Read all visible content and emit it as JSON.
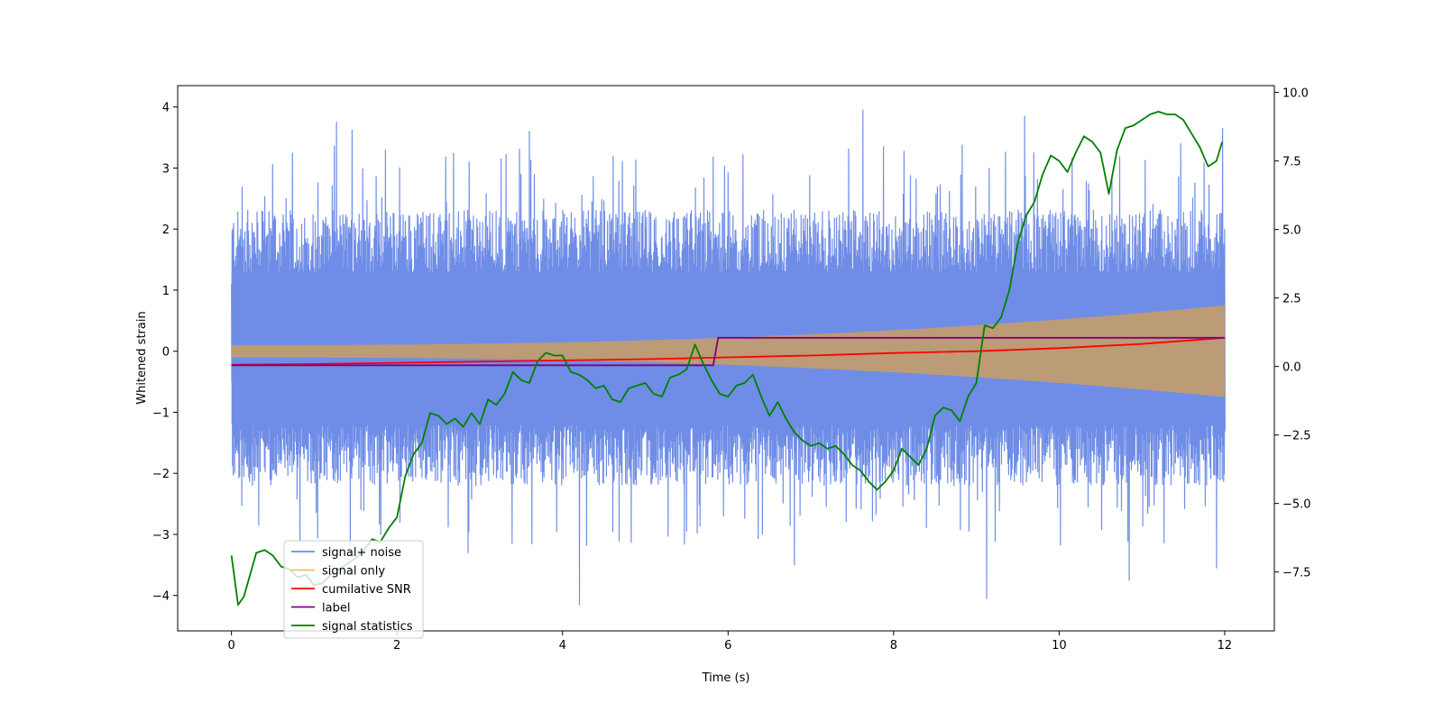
{
  "chart_data": {
    "type": "line",
    "title": "",
    "xlabel": "Time (s)",
    "ylabel": "Whitened strain",
    "y2label": "",
    "xlim": [
      -0.65,
      12.6
    ],
    "ylim": [
      -4.58,
      4.35
    ],
    "y2lim": [
      -9.65,
      10.25
    ],
    "xticks": [
      0,
      2,
      4,
      6,
      8,
      10,
      12
    ],
    "xtick_labels": [
      "0",
      "2",
      "4",
      "6",
      "8",
      "10",
      "12"
    ],
    "yticks": [
      -4,
      -3,
      -2,
      -1,
      0,
      1,
      2,
      3,
      4
    ],
    "ytick_labels": [
      "−4",
      "−3",
      "−2",
      "−1",
      "0",
      "1",
      "2",
      "3",
      "4"
    ],
    "y2ticks": [
      -7.5,
      -5.0,
      -2.5,
      0.0,
      2.5,
      5.0,
      7.5,
      10.0
    ],
    "y2tick_labels": [
      "−7.5",
      "−5.0",
      "−2.5",
      "0.0",
      "2.5",
      "5.0",
      "7.5",
      "10.0"
    ],
    "legend_position": "lower-left",
    "grid": false,
    "series": [
      {
        "name": "signal+ noise",
        "axis": "left",
        "color": "#6f8de6",
        "kind": "noise-band",
        "upper_envelope_approx": 2.1,
        "lower_envelope_approx": -2.0,
        "peak_max": 3.95,
        "peak_min": -4.15
      },
      {
        "name": "signal only",
        "axis": "left",
        "color": "#f0c060",
        "kind": "chirp",
        "amplitude_start": 0.1,
        "amplitude_end": 0.75
      },
      {
        "name": "cumilative SNR",
        "axis": "left",
        "color": "#ff0000",
        "x": [
          0,
          1,
          2,
          3,
          4,
          5,
          6,
          7,
          8,
          9,
          10,
          11,
          12
        ],
        "values": [
          -0.22,
          -0.21,
          -0.19,
          -0.17,
          -0.15,
          -0.13,
          -0.1,
          -0.07,
          -0.03,
          0.0,
          0.05,
          0.12,
          0.22
        ]
      },
      {
        "name": "label",
        "axis": "left",
        "color": "#800080",
        "x": [
          0,
          5.82,
          5.88,
          12
        ],
        "values": [
          -0.23,
          -0.23,
          0.22,
          0.22
        ]
      },
      {
        "name": "signal statistics",
        "axis": "right",
        "color": "#008000",
        "x": [
          0,
          0.08,
          0.15,
          0.3,
          0.4,
          0.5,
          0.6,
          0.7,
          0.8,
          0.9,
          1.0,
          1.1,
          1.2,
          1.3,
          1.4,
          1.5,
          1.6,
          1.7,
          1.8,
          1.9,
          2.0,
          2.1,
          2.2,
          2.3,
          2.4,
          2.5,
          2.6,
          2.7,
          2.8,
          2.9,
          3.0,
          3.1,
          3.2,
          3.3,
          3.4,
          3.5,
          3.6,
          3.7,
          3.8,
          3.9,
          4.0,
          4.1,
          4.2,
          4.3,
          4.4,
          4.5,
          4.6,
          4.7,
          4.8,
          4.9,
          5.0,
          5.1,
          5.2,
          5.3,
          5.4,
          5.5,
          5.6,
          5.7,
          5.8,
          5.9,
          6.0,
          6.1,
          6.2,
          6.3,
          6.4,
          6.5,
          6.6,
          6.7,
          6.8,
          6.9,
          7.0,
          7.1,
          7.2,
          7.3,
          7.4,
          7.5,
          7.6,
          7.7,
          7.8,
          7.9,
          8.0,
          8.1,
          8.2,
          8.3,
          8.4,
          8.5,
          8.6,
          8.7,
          8.8,
          8.9,
          9.0,
          9.1,
          9.2,
          9.3,
          9.4,
          9.5,
          9.6,
          9.7,
          9.8,
          9.9,
          10.0,
          10.1,
          10.2,
          10.3,
          10.4,
          10.5,
          10.6,
          10.7,
          10.8,
          10.9,
          11.0,
          11.1,
          11.2,
          11.3,
          11.4,
          11.5,
          11.6,
          11.7,
          11.8,
          11.9,
          11.97
        ],
        "values": [
          -6.9,
          -8.7,
          -8.4,
          -6.8,
          -6.7,
          -6.9,
          -7.3,
          -7.4,
          -7.7,
          -7.6,
          -8.0,
          -7.9,
          -7.6,
          -7.4,
          -7.2,
          -7.0,
          -6.7,
          -6.3,
          -6.4,
          -5.9,
          -5.5,
          -4.0,
          -3.2,
          -2.8,
          -1.7,
          -1.8,
          -2.1,
          -1.9,
          -2.2,
          -1.7,
          -2.1,
          -1.2,
          -1.4,
          -1.0,
          -0.2,
          -0.5,
          -0.6,
          0.2,
          0.5,
          0.4,
          0.4,
          -0.2,
          -0.3,
          -0.5,
          -0.8,
          -0.7,
          -1.2,
          -1.3,
          -0.8,
          -0.7,
          -0.6,
          -1.0,
          -1.1,
          -0.4,
          -0.3,
          -0.1,
          0.8,
          0.1,
          -0.5,
          -1.0,
          -1.1,
          -0.7,
          -0.6,
          -0.3,
          -1.1,
          -1.8,
          -1.3,
          -1.9,
          -2.4,
          -2.7,
          -2.9,
          -2.8,
          -3.0,
          -2.9,
          -3.2,
          -3.6,
          -3.8,
          -4.2,
          -4.5,
          -4.2,
          -3.8,
          -3.0,
          -3.3,
          -3.6,
          -3.0,
          -1.8,
          -1.5,
          -1.6,
          -2.0,
          -1.1,
          -0.6,
          1.5,
          1.4,
          1.8,
          2.8,
          4.5,
          5.5,
          6.0,
          7.0,
          7.7,
          7.5,
          7.1,
          7.8,
          8.4,
          8.2,
          7.8,
          6.3,
          7.9,
          8.7,
          8.8,
          9.0,
          9.2,
          9.3,
          9.2,
          9.2,
          9.0,
          8.5,
          8.0,
          7.3,
          7.5,
          8.2
        ]
      }
    ]
  }
}
